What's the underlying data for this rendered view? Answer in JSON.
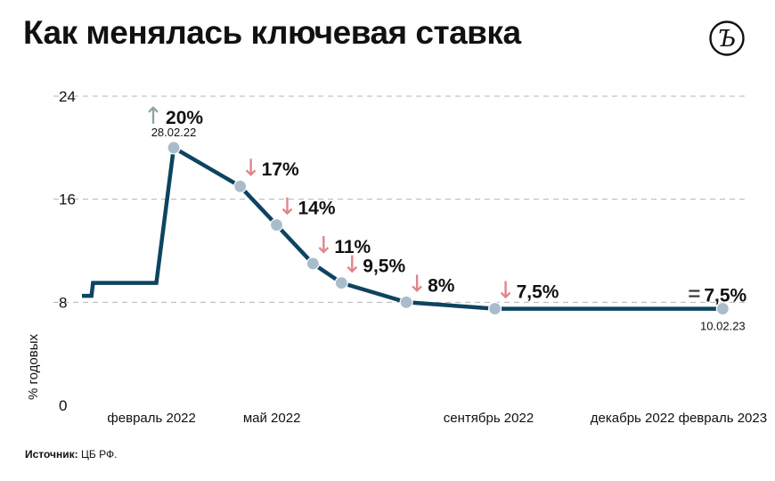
{
  "title": "Как менялась ключевая ставка",
  "logo_label": "Ъ",
  "source_label": "Источник:",
  "source_value": "ЦБ РФ.",
  "colors": {
    "line": "#0d4460",
    "marker": "#a9bccb",
    "grid": "#b5b5b5",
    "arrow_up": "#8fa69a",
    "arrow_down": "#e0868a",
    "text": "#111111"
  },
  "chart_data": {
    "type": "line",
    "step": true,
    "ylabel": "% годовых",
    "ylim": [
      0,
      24
    ],
    "y_ticks": [
      0,
      8,
      16,
      24
    ],
    "xlim": [
      "2022-01-01",
      "2023-02-25"
    ],
    "x_ticks": [
      {
        "label": "февраль 2022",
        "date": "2022-02-14"
      },
      {
        "label": "май 2022",
        "date": "2022-05-01"
      },
      {
        "label": "сентябрь 2022",
        "date": "2022-09-15"
      },
      {
        "label": "декабрь 2022",
        "date": "2022-12-15"
      },
      {
        "label": "февраль 2023",
        "date": "2023-02-10"
      }
    ],
    "grid": "horizontal dashed",
    "series": [
      {
        "values": [
          {
            "date": "2022-01-01",
            "rate": 8.5
          },
          {
            "date": "2022-01-07",
            "rate": 8.5
          },
          {
            "date": "2022-01-08",
            "rate": 9.5
          },
          {
            "date": "2022-02-17",
            "rate": 9.5
          },
          {
            "date": "2022-02-28",
            "rate": 20
          },
          {
            "date": "2022-04-11",
            "rate": 17
          },
          {
            "date": "2022-05-04",
            "rate": 14
          },
          {
            "date": "2022-05-27",
            "rate": 11
          },
          {
            "date": "2022-06-14",
            "rate": 9.5
          },
          {
            "date": "2022-07-25",
            "rate": 8
          },
          {
            "date": "2022-09-19",
            "rate": 7.5
          },
          {
            "date": "2023-02-10",
            "rate": 7.5
          }
        ]
      }
    ],
    "annotations": [
      {
        "date": "2022-02-28",
        "rate": 20,
        "text": "20%",
        "direction": "up",
        "sublabel": "28.02.22"
      },
      {
        "date": "2022-04-11",
        "rate": 17,
        "text": "17%",
        "direction": "down"
      },
      {
        "date": "2022-05-04",
        "rate": 14,
        "text": "14%",
        "direction": "down"
      },
      {
        "date": "2022-05-27",
        "rate": 11,
        "text": "11%",
        "direction": "down"
      },
      {
        "date": "2022-06-14",
        "rate": 9.5,
        "text": "9,5%",
        "direction": "down"
      },
      {
        "date": "2022-07-25",
        "rate": 8,
        "text": "8%",
        "direction": "down"
      },
      {
        "date": "2022-09-19",
        "rate": 7.5,
        "text": "7,5%",
        "direction": "down"
      },
      {
        "date": "2023-02-10",
        "rate": 7.5,
        "text": "7,5%",
        "direction": "same",
        "sublabel": "10.02.23"
      }
    ]
  }
}
